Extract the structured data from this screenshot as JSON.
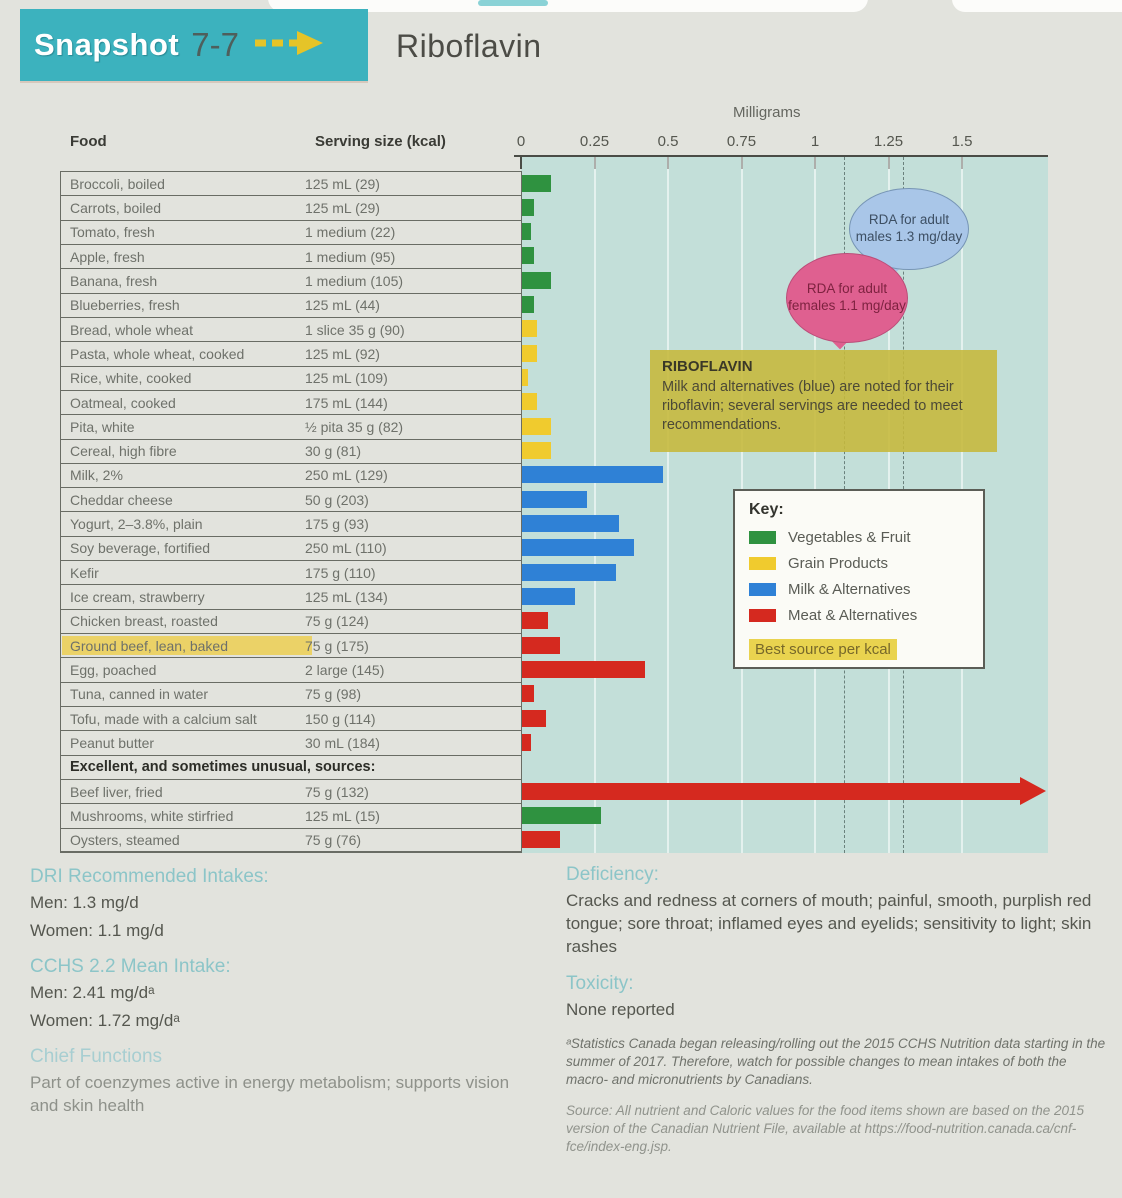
{
  "header": {
    "snapshot_label": "Snapshot",
    "snapshot_number": "7-7",
    "title": "Riboflavin"
  },
  "table": {
    "col_food": "Food",
    "col_serving": "Serving size (kcal)"
  },
  "chart_data": {
    "type": "bar",
    "orientation": "horizontal",
    "unit": "mg",
    "xlabel": "Milligrams",
    "x_ticks": [
      0,
      0.25,
      0.5,
      0.75,
      1,
      1.25,
      1.5
    ],
    "x_tick_labels": [
      "0",
      "0.25",
      "0.5",
      "0.75",
      "1",
      "1.25",
      "1.5"
    ],
    "xlim": [
      0,
      1.8
    ],
    "grid": true,
    "rda_lines": [
      {
        "label": "RDA for adult females",
        "value": 1.1
      },
      {
        "label": "RDA for adult males",
        "value": 1.3
      }
    ],
    "rows": [
      {
        "food": "Broccoli, boiled",
        "serving": "125 mL (29)",
        "value": 0.1,
        "group": "veg"
      },
      {
        "food": "Carrots, boiled",
        "serving": "125 mL (29)",
        "value": 0.04,
        "group": "veg"
      },
      {
        "food": "Tomato, fresh",
        "serving": "1 medium (22)",
        "value": 0.03,
        "group": "veg"
      },
      {
        "food": "Apple, fresh",
        "serving": "1 medium (95)",
        "value": 0.04,
        "group": "veg"
      },
      {
        "food": "Banana, fresh",
        "serving": "1 medium (105)",
        "value": 0.1,
        "group": "veg"
      },
      {
        "food": "Blueberries, fresh",
        "serving": "125 mL (44)",
        "value": 0.04,
        "group": "veg"
      },
      {
        "food": "Bread, whole wheat",
        "serving": "1 slice 35 g (90)",
        "value": 0.05,
        "group": "grain"
      },
      {
        "food": "Pasta, whole wheat, cooked",
        "serving": "125 mL (92)",
        "value": 0.05,
        "group": "grain"
      },
      {
        "food": "Rice, white, cooked",
        "serving": "125 mL (109)",
        "value": 0.02,
        "group": "grain"
      },
      {
        "food": "Oatmeal, cooked",
        "serving": "175 mL (144)",
        "value": 0.05,
        "group": "grain"
      },
      {
        "food": "Pita, white",
        "serving": "½ pita 35 g (82)",
        "value": 0.1,
        "group": "grain"
      },
      {
        "food": "Cereal, high fibre",
        "serving": "30 g (81)",
        "value": 0.1,
        "group": "grain"
      },
      {
        "food": "Milk, 2%",
        "serving": "250 mL (129)",
        "value": 0.48,
        "group": "milk"
      },
      {
        "food": "Cheddar cheese",
        "serving": "50 g (203)",
        "value": 0.22,
        "group": "milk"
      },
      {
        "food": "Yogurt, 2–3.8%, plain",
        "serving": "175 g (93)",
        "value": 0.33,
        "group": "milk"
      },
      {
        "food": "Soy beverage, fortified",
        "serving": "250 mL (110)",
        "value": 0.38,
        "group": "milk"
      },
      {
        "food": "Kefir",
        "serving": "175 g (110)",
        "value": 0.32,
        "group": "milk"
      },
      {
        "food": "Ice cream, strawberry",
        "serving": "125 mL (134)",
        "value": 0.18,
        "group": "milk"
      },
      {
        "food": "Chicken breast, roasted",
        "serving": "75 g (124)",
        "value": 0.09,
        "group": "meat"
      },
      {
        "food": "Ground beef, lean, baked",
        "serving": "75 g (175)",
        "value": 0.13,
        "group": "meat",
        "highlight": true
      },
      {
        "food": "Egg, poached",
        "serving": "2 large (145)",
        "value": 0.42,
        "group": "meat"
      },
      {
        "food": "Tuna, canned in water",
        "serving": "75 g (98)",
        "value": 0.04,
        "group": "meat"
      },
      {
        "food": "Tofu, made with a calcium salt",
        "serving": "150 g (114)",
        "value": 0.08,
        "group": "meat"
      },
      {
        "food": "Peanut butter",
        "serving": "30 mL (184)",
        "value": 0.03,
        "group": "meat"
      },
      {
        "food": "Excellent, and sometimes unusual, sources:",
        "section": true
      },
      {
        "food": "Beef liver, fried",
        "serving": "75 g (132)",
        "value": 1.75,
        "group": "meat",
        "offscale": true
      },
      {
        "food": "Mushrooms, white stirfried",
        "serving": "125 mL (15)",
        "value": 0.27,
        "group": "veg"
      },
      {
        "food": "Oysters, steamed",
        "serving": "75 g (76)",
        "value": 0.13,
        "group": "meat"
      }
    ]
  },
  "annotations": {
    "rda_males": "RDA for adult males 1.3 mg/day",
    "rda_females": "RDA for adult females 1.1 mg/day",
    "note_title": "RIBOFLAVIN",
    "note_body": "Milk and alternatives (blue) are noted for their riboflavin; several servings are needed to meet recommendations."
  },
  "key": {
    "title": "Key:",
    "entries": [
      {
        "label": "Vegetables & Fruit",
        "group": "veg",
        "color": "#2f9240"
      },
      {
        "label": "Grain Products",
        "group": "grain",
        "color": "#f0cb2e"
      },
      {
        "label": "Milk & Alternatives",
        "group": "milk",
        "color": "#2f81d6"
      },
      {
        "label": "Meat & Alternatives",
        "group": "meat",
        "color": "#d5291f"
      }
    ],
    "best_source_label": "Best source per kcal"
  },
  "sections": {
    "dri": {
      "heading": "DRI Recommended Intakes:",
      "men": "Men: 1.3 mg/d",
      "women": "Women: 1.1 mg/d"
    },
    "cchs": {
      "heading": "CCHS 2.2 Mean Intake:",
      "men": "Men: 2.41 mg/dᵃ",
      "women": "Women: 1.72 mg/dᵃ"
    },
    "chief_functions": {
      "heading": "Chief Functions",
      "body": "Part of coenzymes active in energy metabolism; supports vision and skin health"
    },
    "deficiency": {
      "heading": "Deficiency:",
      "body": "Cracks and redness at corners of mouth; painful, smooth, purplish red tongue; sore throat; inflamed eyes and eyelids; sensitivity to light; skin rashes"
    },
    "toxicity": {
      "heading": "Toxicity:",
      "body": "None reported"
    },
    "footnote_a": "ᵃStatistics Canada began releasing/rolling out the 2015 CCHS Nutrition data starting in the summer of 2017. Therefore, watch for possible changes to mean intakes of both the macro- and micronutrients by Canadians.",
    "source": "Source: All nutrient and Caloric values for the food items shown are based on the 2015 version of the Canadian Nutrient File, available at https://food-nutrition.canada.ca/cnf-fce/index-eng.jsp."
  }
}
